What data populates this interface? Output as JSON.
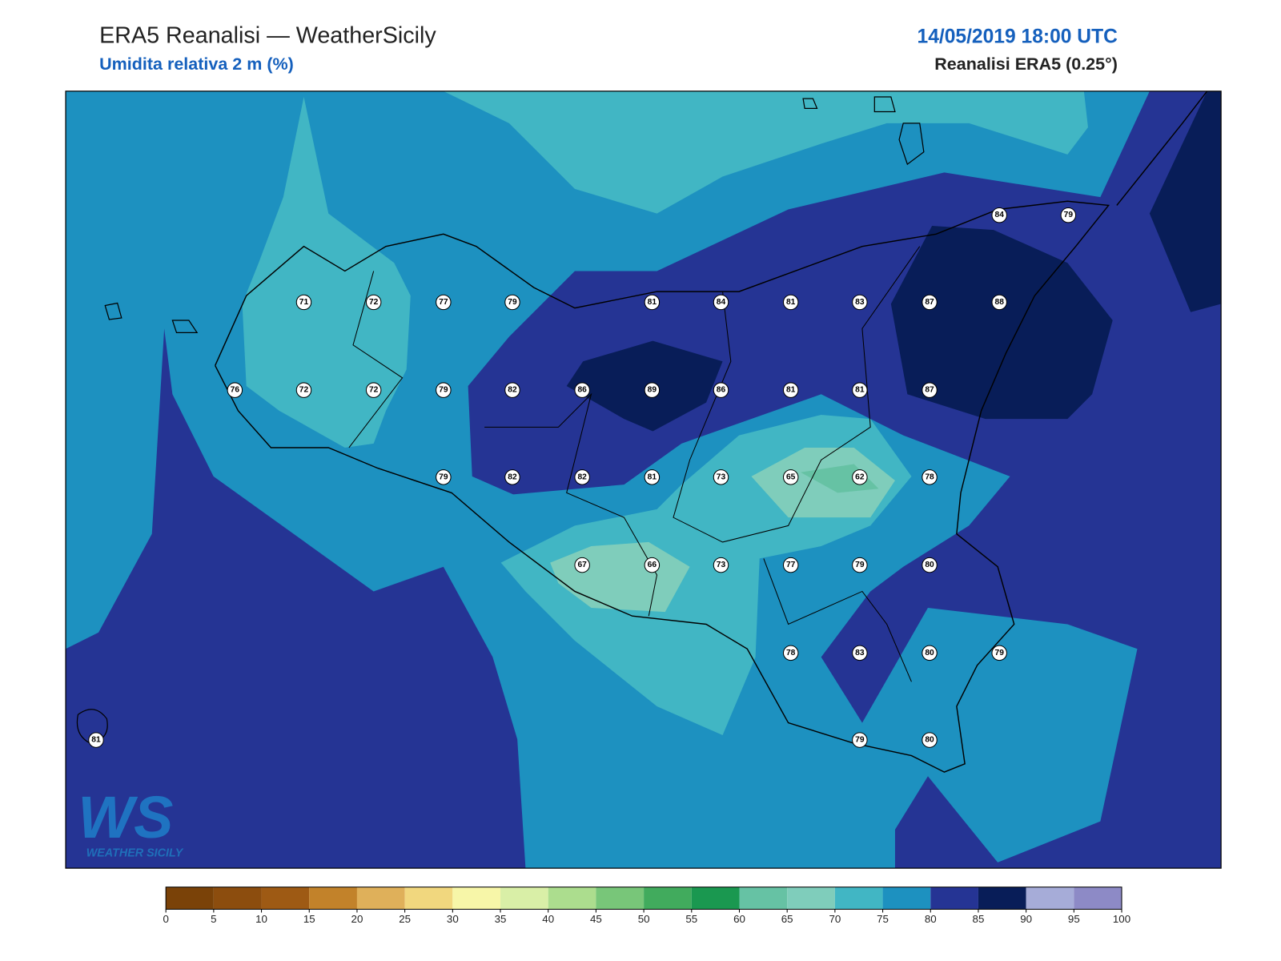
{
  "header": {
    "title": "ERA5 Reanalisi — WeatherSicily",
    "subtitle": "Umidita relativa 2 m (%)",
    "date": "14/05/2019 18:00 UTC",
    "source": "Reanalisi ERA5 (0.25°)"
  },
  "stations": [
    84,
    79,
    71,
    72,
    77,
    79,
    81,
    84,
    81,
    83,
    87,
    88,
    76,
    72,
    72,
    79,
    82,
    86,
    89,
    86,
    81,
    81,
    87,
    79,
    82,
    82,
    81,
    73,
    65,
    62,
    78,
    67,
    66,
    73,
    77,
    79,
    80,
    78,
    83,
    80,
    79,
    81,
    79,
    80
  ],
  "colorbar": {
    "ticks": [
      0,
      5,
      10,
      15,
      20,
      25,
      30,
      35,
      40,
      45,
      50,
      55,
      60,
      65,
      70,
      75,
      80,
      85,
      90,
      95,
      100
    ],
    "colors": [
      "#7a4208",
      "#8c4d0e",
      "#9e5a14",
      "#c2822a",
      "#dfb05a",
      "#f1d77e",
      "#f7f6a8",
      "#d9efa7",
      "#acdd8e",
      "#78c679",
      "#41ab5d",
      "#1a9850",
      "#66c2a4",
      "#7fcdbb",
      "#41b6c4",
      "#1d91c0",
      "#253494",
      "#081d58",
      "#a6acd8",
      "#8d8ac6"
    ]
  },
  "logo": {
    "text": "WS",
    "caption": "WEATHER SICILY"
  }
}
